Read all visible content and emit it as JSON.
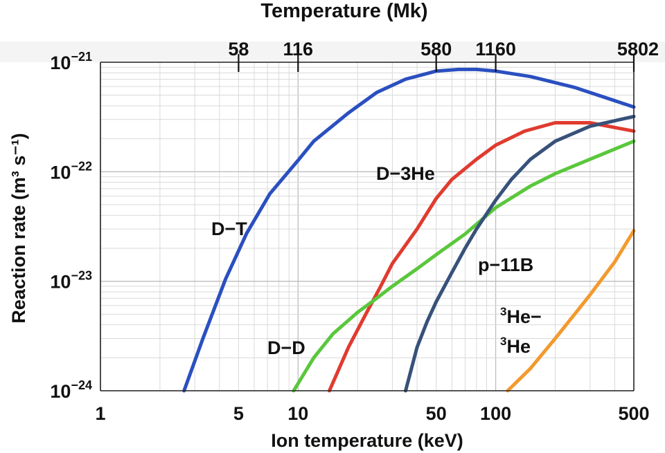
{
  "chart_data": {
    "type": "line",
    "title": "Temperature (Mk)",
    "xlabel": "Ion temperature (keV)",
    "ylabel": "Reaction rate (m³ s⁻¹)",
    "x_scale": "log",
    "y_scale": "log",
    "xlim": [
      1,
      500
    ],
    "ylim": [
      1e-24,
      1e-21
    ],
    "x_ticks": [
      1,
      5,
      10,
      50,
      100,
      500
    ],
    "x_tick_labels": [
      "1",
      "5",
      "10",
      "50",
      "100",
      "500"
    ],
    "top_ticks_kev": [
      5,
      10,
      50,
      100,
      500
    ],
    "top_tick_labels": [
      "58",
      "116",
      "580",
      "1160",
      "5802"
    ],
    "y_ticks": [
      1e-24,
      1e-23,
      1e-22,
      1e-21
    ],
    "y_tick_exponents": [
      "−24",
      "−23",
      "−22",
      "−21"
    ],
    "y_tick_base": "10",
    "grid": true,
    "legend": "none",
    "series": [
      {
        "name": "D−T",
        "label_lines": [
          "D−T"
        ],
        "color": "#2a4fc0",
        "x": [
          2.65,
          3.3,
          4.3,
          5.5,
          7.2,
          10,
          12,
          18,
          25,
          35,
          50,
          65,
          80,
          100,
          150,
          250,
          500
        ],
        "y": [
          1e-24,
          3e-24,
          1.05e-23,
          2.75e-23,
          6.3e-23,
          1.27e-22,
          1.9e-22,
          3.45e-22,
          5.3e-22,
          7e-22,
          8.3e-22,
          8.6e-22,
          8.6e-22,
          8.3e-22,
          7.4e-22,
          5.9e-22,
          3.9e-22
        ]
      },
      {
        "name": "D−3He",
        "label_lines": [
          "D−3He"
        ],
        "color": "#e03b2f",
        "x": [
          14.4,
          18,
          22,
          26,
          30,
          40,
          50,
          60,
          80,
          100,
          140,
          200,
          300,
          500
        ],
        "y": [
          1e-24,
          2.5e-24,
          5e-24,
          8.8e-24,
          1.45e-23,
          3e-23,
          5.7e-23,
          8.5e-23,
          1.3e-22,
          1.75e-22,
          2.35e-22,
          2.8e-22,
          2.8e-22,
          2.35e-22
        ]
      },
      {
        "name": "D−D",
        "label_lines": [
          "D−D"
        ],
        "color": "#5ac73c",
        "x": [
          9.5,
          12,
          15,
          20,
          25,
          30,
          40,
          50,
          70,
          100,
          150,
          200,
          300,
          500
        ],
        "y": [
          1e-24,
          2e-24,
          3.3e-24,
          5.2e-24,
          7e-24,
          9e-24,
          1.3e-23,
          1.75e-23,
          2.7e-23,
          4.7e-23,
          7.4e-23,
          9.6e-23,
          1.3e-22,
          1.9e-22
        ]
      },
      {
        "name": "p−11B",
        "label_lines": [
          "p−11B"
        ],
        "color": "#37517a",
        "x": [
          35,
          40,
          45,
          50,
          60,
          70,
          80,
          100,
          120,
          150,
          200,
          300,
          500
        ],
        "y": [
          1e-24,
          2.5e-24,
          4.3e-24,
          6.5e-24,
          1.2e-23,
          2e-23,
          3e-23,
          5.5e-23,
          8.5e-23,
          1.3e-22,
          1.9e-22,
          2.6e-22,
          3.2e-22
        ]
      },
      {
        "name": "3He−3He",
        "label_lines": [
          "3He−",
          "3He"
        ],
        "color": "#f29a2e",
        "x": [
          115,
          150,
          200,
          300,
          400,
          500
        ],
        "y": [
          1e-24,
          1.6e-24,
          3e-24,
          7.5e-24,
          1.5e-23,
          2.9e-23
        ]
      }
    ]
  }
}
